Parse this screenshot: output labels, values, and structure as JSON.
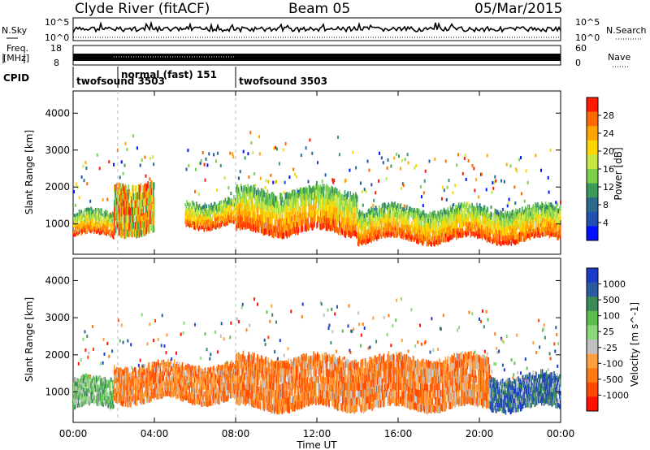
{
  "header": {
    "station": "Clyde River (fitACF)",
    "beam": "Beam 05",
    "date": "05/Mar/2015"
  },
  "side_labels": {
    "nsky": "N.Sky",
    "freq_line1": "Freq.",
    "freq_line2": "[MHz]",
    "cpid": "CPID",
    "nsearch": "N.Search",
    "nave": "Nave"
  },
  "top_axes": {
    "noise_left_ticks": [
      "10^5",
      "10^0"
    ],
    "noise_right_ticks": [
      "10^5",
      "10^0"
    ],
    "freq_left_ticks": [
      "18",
      "8"
    ],
    "nave_right_ticks": [
      "60",
      "0"
    ]
  },
  "cpid_segments": [
    {
      "name": "twofsound",
      "id": "3503",
      "start_hour": 0,
      "end_hour": 2.2
    },
    {
      "name": "normal (fast)",
      "id": "151",
      "start_hour": 2.2,
      "end_hour": 8.0
    },
    {
      "name": "twofsound",
      "id": "3503",
      "start_hour": 8.0,
      "end_hour": 24
    }
  ],
  "chart_data": [
    {
      "type": "heatmap",
      "title": "Power",
      "xlabel": "Time UT",
      "ylabel": "Slant Range [km]",
      "xlim": [
        0,
        24
      ],
      "ylim": [
        180,
        4600
      ],
      "xticks": [
        "00:00",
        "04:00",
        "08:00",
        "12:00",
        "16:00",
        "20:00",
        "00:00"
      ],
      "yticks": [
        1000,
        2000,
        3000,
        4000
      ],
      "colorbar": {
        "label": "Power [dB]",
        "ticks": [
          "28",
          "24",
          "20",
          "16",
          "12",
          "8",
          "4"
        ],
        "colors": [
          "#ff1a00",
          "#ff6a00",
          "#ffa500",
          "#ffd500",
          "#c8e640",
          "#7ccf4a",
          "#3a9a5a",
          "#2a6a8a",
          "#2050b0",
          "#0010ff"
        ]
      },
      "echo_bands": [
        {
          "t0": 0.0,
          "t1": 2.0,
          "r_low": 600,
          "r_high": 1350,
          "level": "high"
        },
        {
          "t0": 2.0,
          "t1": 4.0,
          "r_low": 700,
          "r_high": 2200,
          "level": "mixed"
        },
        {
          "t0": 5.5,
          "t1": 8.0,
          "r_low": 900,
          "r_high": 1700,
          "level": "high"
        },
        {
          "t0": 8.0,
          "t1": 14.0,
          "r_low": 700,
          "r_high": 2000,
          "level": "high"
        },
        {
          "t0": 14.0,
          "t1": 24.0,
          "r_low": 500,
          "r_high": 1500,
          "level": "high"
        }
      ]
    },
    {
      "type": "heatmap",
      "title": "Velocity",
      "xlabel": "Time UT",
      "ylabel": "Slant Range [km]",
      "xlim": [
        0,
        24
      ],
      "ylim": [
        180,
        4600
      ],
      "xticks": [
        "00:00",
        "04:00",
        "08:00",
        "12:00",
        "16:00",
        "20:00",
        "00:00"
      ],
      "yticks": [
        1000,
        2000,
        3000,
        4000
      ],
      "colorbar": {
        "label": "Velocity [m s^-1]",
        "ticks": [
          "1000",
          "500",
          "100",
          "25",
          "-25",
          "-100",
          "-500",
          "-1000"
        ],
        "colors": [
          "#1a3cc8",
          "#2a5aa0",
          "#3a8a5a",
          "#5abf4a",
          "#8ad87a",
          "#c0c0c0",
          "#ffa040",
          "#ff7a10",
          "#ff4a00",
          "#ff1000"
        ]
      },
      "echo_bands": [
        {
          "t0": 0.0,
          "t1": 2.0,
          "r_low": 500,
          "r_high": 1400,
          "level": "green"
        },
        {
          "t0": 2.0,
          "t1": 8.0,
          "r_low": 700,
          "r_high": 1800,
          "level": "orange"
        },
        {
          "t0": 8.0,
          "t1": 20.5,
          "r_low": 500,
          "r_high": 2000,
          "level": "orange"
        },
        {
          "t0": 20.5,
          "t1": 24.0,
          "r_low": 500,
          "r_high": 1500,
          "level": "blue"
        }
      ]
    }
  ]
}
